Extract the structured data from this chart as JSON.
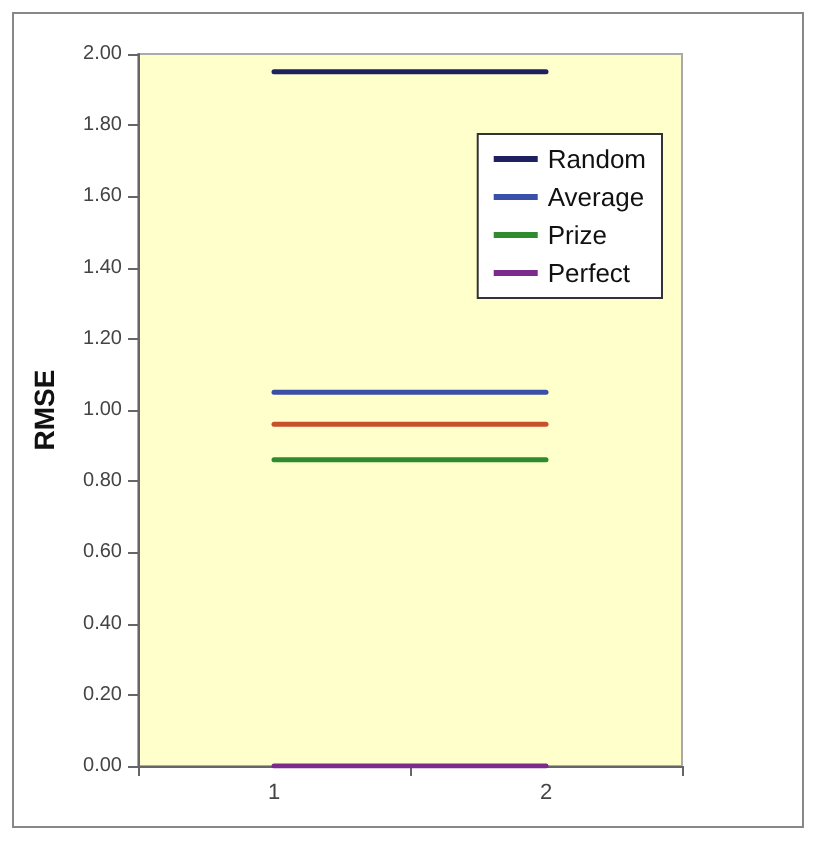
{
  "chart_data": {
    "type": "line",
    "ylabel": "RMSE",
    "categories": [
      "1",
      "2"
    ],
    "series": [
      {
        "name": "Random",
        "color": "#1f2060",
        "values": [
          1.95,
          1.95
        ]
      },
      {
        "name": "Average",
        "color": "#3a4fa8",
        "values": [
          1.05,
          1.05
        ]
      },
      {
        "color": "#c8502a",
        "values": [
          0.96,
          0.96
        ]
      },
      {
        "name": "Prize",
        "color": "#2e8b2e",
        "values": [
          0.86,
          0.86
        ]
      },
      {
        "name": "Perfect",
        "color": "#7b2b8b",
        "values": [
          0,
          0
        ]
      }
    ],
    "ylim": [
      0,
      2
    ],
    "yticks": [
      {
        "value": 0,
        "label": "0.00"
      },
      {
        "value": 0.2,
        "label": "0.20"
      },
      {
        "value": 0.4,
        "label": "0.40"
      },
      {
        "value": 0.6,
        "label": "0.60"
      },
      {
        "value": 0.8,
        "label": "0.80"
      },
      {
        "value": 1,
        "label": "1.00"
      },
      {
        "value": 1.2,
        "label": "1.20"
      },
      {
        "value": 1.4,
        "label": "1.40"
      },
      {
        "value": 1.6,
        "label": "1.60"
      },
      {
        "value": 1.8,
        "label": "1.80"
      },
      {
        "value": 2,
        "label": "2.00"
      }
    ],
    "grid": false,
    "legend": "top right",
    "marker": "none",
    "line_style": "solid"
  }
}
